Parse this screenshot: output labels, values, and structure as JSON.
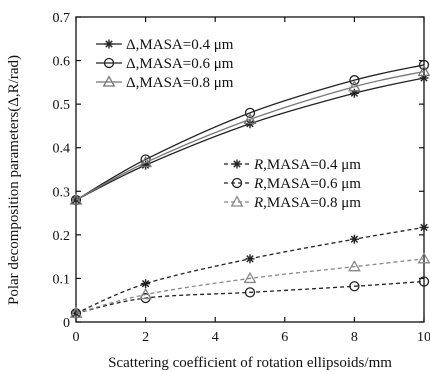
{
  "chart_data": {
    "type": "line",
    "xlabel": "Scattering coefficient of rotation ellipsoids/mm",
    "ylabel": "Polar decomposition parameters(Δ,R/rad)",
    "xlim": [
      0,
      10
    ],
    "ylim": [
      0,
      0.7
    ],
    "x_ticks": [
      "0",
      "2",
      "4",
      "6",
      "8",
      "10"
    ],
    "y_ticks": [
      "0",
      "0.1",
      "0.2",
      "0.3",
      "0.4",
      "0.5",
      "0.6",
      "0.7"
    ],
    "grid": false,
    "x": [
      0,
      2,
      5,
      8,
      10
    ],
    "series": [
      {
        "name": "Δ,MASA=0.4 μm",
        "prefix": "Δ",
        "suffix": ",MASA=0.4 μm",
        "italic_prefix": false,
        "marker": "star",
        "dash": "solid",
        "color": "#222222",
        "values": [
          0.28,
          0.36,
          0.455,
          0.525,
          0.56
        ]
      },
      {
        "name": "Δ,MASA=0.6 μm",
        "prefix": "Δ",
        "suffix": ",MASA=0.6 μm",
        "italic_prefix": false,
        "marker": "circle",
        "dash": "solid",
        "color": "#222222",
        "values": [
          0.28,
          0.373,
          0.48,
          0.555,
          0.59
        ]
      },
      {
        "name": "Δ,MASA=0.8 μm",
        "prefix": "Δ",
        "suffix": ",MASA=0.8 μm",
        "italic_prefix": false,
        "marker": "triangle",
        "dash": "solid",
        "color": "#777777",
        "values": [
          0.28,
          0.366,
          0.465,
          0.54,
          0.575
        ]
      },
      {
        "name": "R,MASA=0.4 μm",
        "prefix": "R",
        "suffix": ",MASA=0.4 μm",
        "italic_prefix": true,
        "marker": "star",
        "dash": "dashed",
        "color": "#222222",
        "values": [
          0.02,
          0.088,
          0.145,
          0.19,
          0.217
        ]
      },
      {
        "name": "R,MASA=0.6 μm",
        "prefix": "R",
        "suffix": ",MASA=0.6 μm",
        "italic_prefix": true,
        "marker": "circle",
        "dash": "dashed",
        "color": "#222222",
        "values": [
          0.02,
          0.055,
          0.068,
          0.082,
          0.093
        ]
      },
      {
        "name": "R,MASA=0.8 μm",
        "prefix": "R",
        "suffix": ",MASA=0.8 μm",
        "italic_prefix": true,
        "marker": "triangle",
        "dash": "dashed",
        "color": "#888888",
        "values": [
          0.02,
          0.063,
          0.1,
          0.127,
          0.145
        ]
      }
    ],
    "legends": [
      {
        "placement": "top-left",
        "series_index": [
          0,
          1,
          2
        ]
      },
      {
        "placement": "center-right",
        "series_index": [
          3,
          4,
          5
        ]
      }
    ]
  }
}
